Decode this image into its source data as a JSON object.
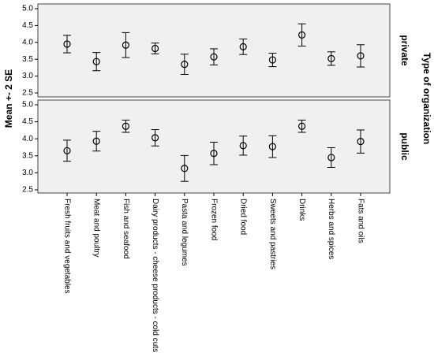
{
  "chart_data": {
    "type": "errorbar",
    "y_label": "Mean +- 2 SE",
    "facet_label": "Type of organization",
    "categories": [
      "Fresh fruits and vegetables",
      "Meat and poultry",
      "Fish and seafood",
      "Dairy products - cheese products - cold cuts",
      "Pasta and legumes",
      "Frozen food",
      "Dried food",
      "Sweets and pastries",
      "Drinks",
      "Herbs and spices",
      "Fats and oils"
    ],
    "series": [
      {
        "name": "private",
        "color": "#000000",
        "values": [
          3.95,
          3.43,
          3.92,
          3.82,
          3.35,
          3.57,
          3.87,
          3.48,
          4.22,
          3.52,
          3.6
        ],
        "errors": [
          0.26,
          0.27,
          0.37,
          0.16,
          0.3,
          0.24,
          0.23,
          0.2,
          0.33,
          0.2,
          0.33
        ]
      },
      {
        "name": "public",
        "color": "#000000",
        "values": [
          3.65,
          3.93,
          4.37,
          4.03,
          3.13,
          3.57,
          3.8,
          3.77,
          4.37,
          3.45,
          3.92
        ],
        "errors": [
          0.31,
          0.29,
          0.18,
          0.24,
          0.38,
          0.33,
          0.28,
          0.32,
          0.18,
          0.29,
          0.34
        ]
      }
    ],
    "ylim": [
      2.5,
      5.0
    ],
    "yticks": [
      2.5,
      {
        "value": 3.0,
        "label": "3.0"
      },
      3.5,
      {
        "value": 4.0,
        "label": "4.0"
      },
      4.5,
      {
        "value": 5.0,
        "label": "5.0"
      }
    ]
  }
}
